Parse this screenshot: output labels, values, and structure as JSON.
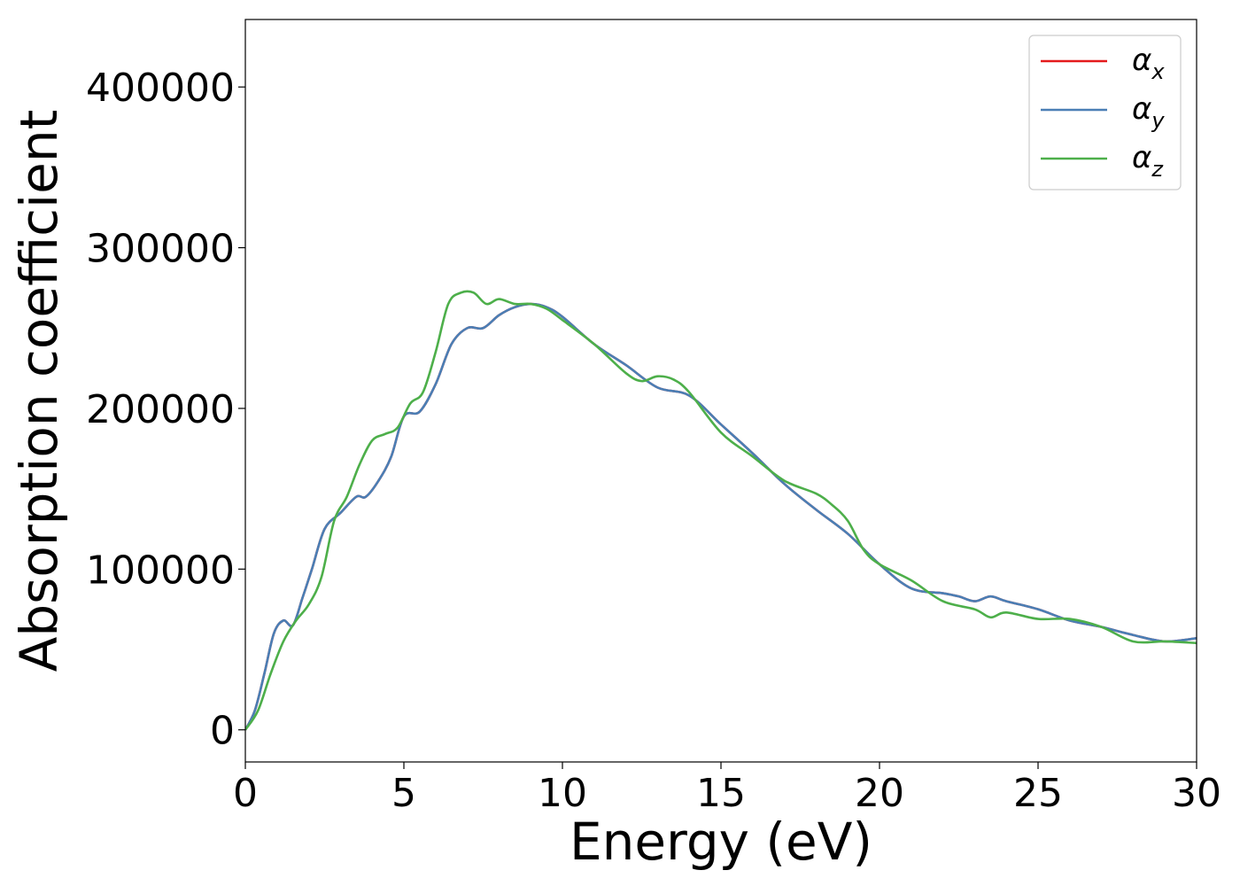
{
  "chart_data": {
    "type": "line",
    "title": "",
    "xlabel": "Energy (eV)",
    "ylabel": "Absorption coefficient",
    "xlim": [
      0,
      30
    ],
    "ylim": [
      -20000,
      442000
    ],
    "xticks": [
      0,
      5,
      10,
      15,
      20,
      25,
      30
    ],
    "yticks": [
      0,
      100000,
      200000,
      300000,
      400000
    ],
    "grid": false,
    "legend": {
      "placement": "top-right",
      "symbol": "α"
    },
    "series": [
      {
        "name": "x",
        "color": "#e41a1c",
        "x": [
          0,
          0.3,
          0.6,
          0.9,
          1.2,
          1.5,
          1.8,
          2.1,
          2.5,
          3.0,
          3.5,
          3.8,
          4.2,
          4.6,
          5.0,
          5.5,
          6.0,
          6.5,
          7.0,
          7.5,
          8.0,
          8.5,
          9.0,
          9.5,
          10.0,
          11.0,
          12.0,
          13.0,
          14.0,
          15.0,
          16.0,
          17.0,
          18.0,
          19.0,
          20.0,
          21.0,
          22.0,
          22.5,
          23.0,
          23.5,
          24.0,
          25.0,
          26.0,
          27.0,
          28.0,
          29.0,
          30.0
        ],
        "values": [
          0,
          12000,
          35000,
          60000,
          68000,
          65000,
          82000,
          100000,
          125000,
          135000,
          145000,
          145000,
          155000,
          170000,
          195000,
          198000,
          215000,
          240000,
          250000,
          250000,
          258000,
          263000,
          265000,
          263000,
          257000,
          240000,
          227000,
          213000,
          208000,
          190000,
          172000,
          153000,
          137000,
          122000,
          103000,
          88000,
          85000,
          83000,
          80000,
          83000,
          80000,
          75000,
          68000,
          64000,
          59000,
          55000,
          57000
        ]
      },
      {
        "name": "y",
        "color": "#4a7fb5",
        "x": [
          0,
          0.3,
          0.6,
          0.9,
          1.2,
          1.5,
          1.8,
          2.1,
          2.5,
          3.0,
          3.5,
          3.8,
          4.2,
          4.6,
          5.0,
          5.5,
          6.0,
          6.5,
          7.0,
          7.5,
          8.0,
          8.5,
          9.0,
          9.5,
          10.0,
          11.0,
          12.0,
          13.0,
          14.0,
          15.0,
          16.0,
          17.0,
          18.0,
          19.0,
          20.0,
          21.0,
          22.0,
          22.5,
          23.0,
          23.5,
          24.0,
          25.0,
          26.0,
          27.0,
          28.0,
          29.0,
          30.0
        ],
        "values": [
          0,
          12000,
          35000,
          60000,
          68000,
          65000,
          82000,
          100000,
          125000,
          135000,
          145000,
          145000,
          155000,
          170000,
          195000,
          198000,
          215000,
          240000,
          250000,
          250000,
          258000,
          263000,
          265000,
          263000,
          257000,
          240000,
          227000,
          213000,
          208000,
          190000,
          172000,
          153000,
          137000,
          122000,
          103000,
          88000,
          85000,
          83000,
          80000,
          83000,
          80000,
          75000,
          68000,
          64000,
          59000,
          55000,
          57000
        ]
      },
      {
        "name": "z",
        "color": "#4daf4a",
        "x": [
          0,
          0.4,
          0.8,
          1.2,
          1.6,
          2.0,
          2.4,
          2.8,
          3.2,
          3.6,
          4.0,
          4.4,
          4.8,
          5.2,
          5.6,
          6.0,
          6.4,
          6.8,
          7.2,
          7.6,
          8.0,
          8.5,
          9.0,
          9.5,
          10.0,
          11.0,
          12.0,
          12.5,
          13.0,
          13.5,
          14.0,
          15.0,
          16.0,
          17.0,
          18.0,
          18.5,
          19.0,
          19.5,
          20.0,
          21.0,
          22.0,
          23.0,
          23.5,
          24.0,
          25.0,
          26.0,
          27.0,
          28.0,
          29.0,
          30.0
        ],
        "values": [
          0,
          12000,
          35000,
          55000,
          68000,
          78000,
          95000,
          130000,
          145000,
          165000,
          180000,
          184000,
          188000,
          203000,
          210000,
          235000,
          265000,
          272000,
          272000,
          265000,
          268000,
          265000,
          265000,
          262000,
          255000,
          240000,
          222000,
          217000,
          220000,
          218000,
          210000,
          185000,
          170000,
          155000,
          147000,
          140000,
          130000,
          112000,
          103000,
          93000,
          80000,
          75000,
          70000,
          73000,
          69000,
          69000,
          64000,
          55000,
          55000,
          54000
        ]
      }
    ]
  }
}
